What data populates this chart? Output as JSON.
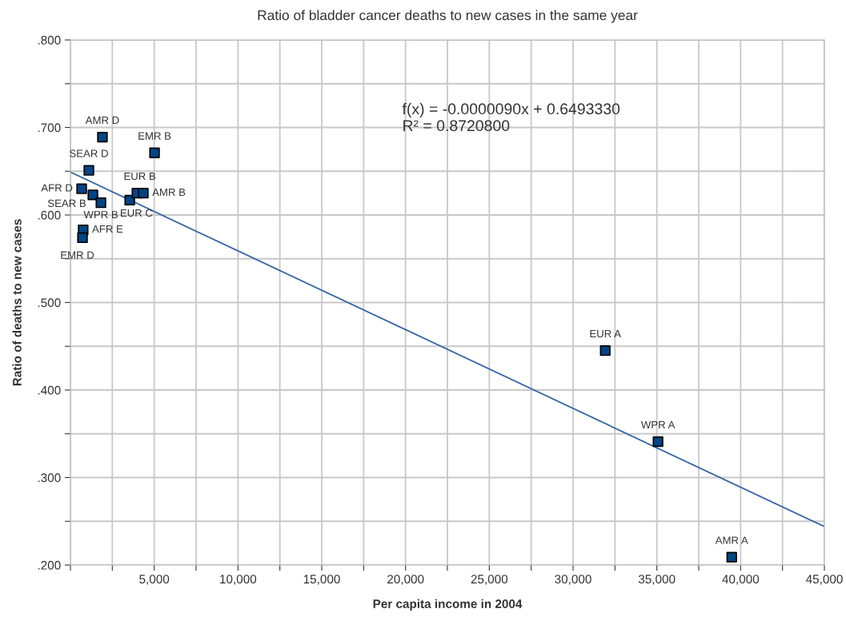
{
  "chart_data": {
    "type": "scatter",
    "title": "Ratio of bladder cancer deaths to new cases in the same year",
    "xlabel": "Per capita income in 2004",
    "ylabel": "Ratio of deaths to new cases",
    "series": [
      {
        "color": "#004586",
        "marker": "square",
        "x": [
          1910,
          5020,
          1100,
          670,
          1340,
          1820,
          3540,
          3970,
          4350,
          760,
          720,
          31920,
          35070,
          39470
        ],
        "values": [
          0.689,
          0.671,
          0.651,
          0.63,
          0.623,
          0.614,
          0.617,
          0.625,
          0.625,
          0.583,
          0.574,
          0.445,
          0.341,
          0.209
        ]
      },
      {
        "type": "line",
        "color": "#3465a4",
        "marker": "none",
        "x": [
          0,
          45000
        ],
        "values": [
          0.649,
          0.244
        ]
      }
    ],
    "annotations": [
      {
        "text": "AMR D",
        "x": 1910,
        "y": 0.689
      },
      {
        "text": "EMR B",
        "x": 5020,
        "y": 0.671
      },
      {
        "text": "SEAR D",
        "x": 1100,
        "y": 0.651
      },
      {
        "text": "AFR D",
        "x": 670,
        "y": 0.63
      },
      {
        "text": "SEAR B",
        "x": 1340,
        "y": 0.623
      },
      {
        "text": "WPR B",
        "x": 1820,
        "y": 0.614
      },
      {
        "text": "EUR C",
        "x": 3540,
        "y": 0.617
      },
      {
        "text": "EUR B",
        "x": 3970,
        "y": 0.625
      },
      {
        "text": "AMR B",
        "x": 4350,
        "y": 0.625
      },
      {
        "text": "AFR E",
        "x": 760,
        "y": 0.583
      },
      {
        "text": "EMR D",
        "x": 720,
        "y": 0.574
      },
      {
        "text": "EUR A",
        "x": 31920,
        "y": 0.445
      },
      {
        "text": "WPR A",
        "x": 35070,
        "y": 0.341
      },
      {
        "text": "AMR A",
        "x": 39470,
        "y": 0.209
      },
      "f(x) = -0.0000090x + 0.6493330\nR² = 0.8720800"
    ],
    "xlim": [
      0,
      45000
    ],
    "ylim": [
      0.2,
      0.8
    ],
    "xticks": [
      {
        "value": 0,
        "label": null
      },
      {
        "value": 2500,
        "label": null
      },
      {
        "value": 5000,
        "label": "5,000"
      },
      {
        "value": 7500,
        "label": null
      },
      {
        "value": 10000,
        "label": "10,000"
      },
      {
        "value": 12500,
        "label": null
      },
      {
        "value": 15000,
        "label": "15,000"
      },
      {
        "value": 17500,
        "label": null
      },
      {
        "value": 20000,
        "label": "20,000"
      },
      {
        "value": 22500,
        "label": null
      },
      {
        "value": 25000,
        "label": "25,000"
      },
      {
        "value": 27500,
        "label": null
      },
      {
        "value": 30000,
        "label": "30,000"
      },
      {
        "value": 32500,
        "label": null
      },
      {
        "value": 35000,
        "label": "35,000"
      },
      {
        "value": 37500,
        "label": null
      },
      {
        "value": 40000,
        "label": "40,000"
      },
      {
        "value": 42500,
        "label": null
      },
      {
        "value": 45000,
        "label": "45,000"
      }
    ],
    "yticks": [
      {
        "value": 0.2,
        "label": ".200"
      },
      {
        "value": 0.25,
        "label": null
      },
      {
        "value": 0.3,
        "label": ".300"
      },
      {
        "value": 0.35,
        "label": null
      },
      {
        "value": 0.4,
        "label": ".400"
      },
      {
        "value": 0.45,
        "label": null
      },
      {
        "value": 0.5,
        "label": ".500"
      },
      {
        "value": 0.55,
        "label": null
      },
      {
        "value": 0.6,
        "label": ".600"
      },
      {
        "value": 0.65,
        "label": null
      },
      {
        "value": 0.7,
        "label": ".700"
      },
      {
        "value": 0.75,
        "label": null
      },
      {
        "value": 0.8,
        "label": ".800"
      }
    ],
    "grid": true
  }
}
